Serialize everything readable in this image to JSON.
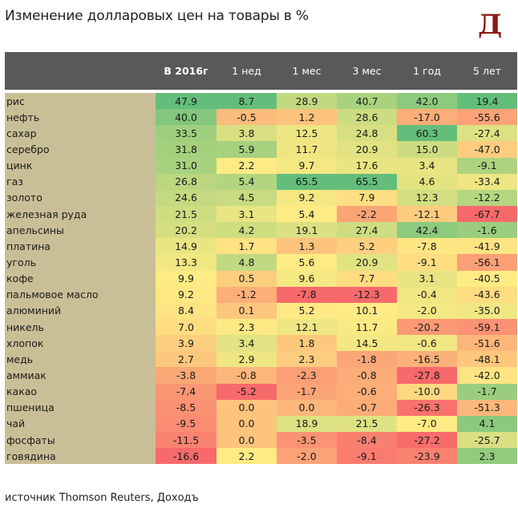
{
  "title": "Изменение долларовых цен на товары в %",
  "logo": "Д",
  "source": "источник Thomson Reuters, Доходъ",
  "colors": {
    "header_bg": "#595959",
    "name_col_bg": "#c9bf97",
    "scale_red": "#f8696b",
    "scale_yellow": "#ffeb84",
    "scale_green": "#63be7b"
  },
  "chart_data": {
    "type": "table",
    "title": "Изменение долларовых цен на товары в %",
    "columns": [
      "",
      "В 2016г",
      "1 нед",
      "1 мес",
      "3 мес",
      "1 год",
      "5 лет"
    ],
    "rows": [
      {
        "name": "рис",
        "values": [
          "47.9",
          "8.7",
          "28.9",
          "40.7",
          "42.0",
          "19.4"
        ]
      },
      {
        "name": "нефть",
        "values": [
          "40.0",
          "-0.5",
          "1.2",
          "28.6",
          "-17.0",
          "-55.6"
        ]
      },
      {
        "name": "сахар",
        "values": [
          "33.5",
          "3.8",
          "12.5",
          "24.8",
          "60.3",
          "-27.4"
        ]
      },
      {
        "name": "серебро",
        "values": [
          "31.8",
          "5.9",
          "11.7",
          "20.9",
          "15.0",
          "-47.0"
        ]
      },
      {
        "name": "цинк",
        "values": [
          "31.0",
          "2.2",
          "9.7",
          "17.6",
          "3.4",
          "-9.1"
        ]
      },
      {
        "name": "газ",
        "values": [
          "26.8",
          "5.4",
          "65.5",
          "65.5",
          "4.6",
          "-33.4"
        ]
      },
      {
        "name": "золото",
        "values": [
          "24.6",
          "4.5",
          "9.2",
          "7.9",
          "12.3",
          "-12.2"
        ]
      },
      {
        "name": "железная руда",
        "values": [
          "21.5",
          "3.1",
          "5.4",
          "-2.2",
          "-12.1",
          "-67.7"
        ]
      },
      {
        "name": "апельсины",
        "values": [
          "20.2",
          "4.2",
          "19.1",
          "27.4",
          "42.4",
          "-1.6"
        ]
      },
      {
        "name": "платина",
        "values": [
          "14.9",
          "1.7",
          "1.3",
          "5.2",
          "-7.8",
          "-41.9"
        ]
      },
      {
        "name": "уголь",
        "values": [
          "13.3",
          "4.8",
          "5.6",
          "20.9",
          "-9.1",
          "-56.1"
        ]
      },
      {
        "name": "кофе",
        "values": [
          "9.9",
          "0.5",
          "9.6",
          "7.7",
          "3.1",
          "-40.5"
        ]
      },
      {
        "name": "пальмовое масло",
        "values": [
          "9.2",
          "-1.2",
          "-7.8",
          "-12.3",
          "-0.4",
          "-43.6"
        ]
      },
      {
        "name": "алюминий",
        "values": [
          "8.4",
          "0.1",
          "5.2",
          "10.1",
          "-2.0",
          "-35.0"
        ]
      },
      {
        "name": "никель",
        "values": [
          "7.0",
          "2.3",
          "12.1",
          "11.7",
          "-20.2",
          "-59.1"
        ]
      },
      {
        "name": "хлопок",
        "values": [
          "3.9",
          "3.4",
          "1.8",
          "14.5",
          "-0.6",
          "-51.6"
        ]
      },
      {
        "name": "медь",
        "values": [
          "2.7",
          "2.9",
          "2.3",
          "-1.8",
          "-16.5",
          "-48.1"
        ]
      },
      {
        "name": "аммиак",
        "values": [
          "-3.8",
          "-0.8",
          "-2.3",
          "-0.8",
          "-27.8",
          "-42.0"
        ]
      },
      {
        "name": "какао",
        "values": [
          "-7.4",
          "-5.2",
          "-1.7",
          "-0.6",
          "-10.0",
          "-1.7"
        ]
      },
      {
        "name": "пшеница",
        "values": [
          "-8.5",
          "0.0",
          "0.0",
          "-0.7",
          "-26.3",
          "-51.3"
        ]
      },
      {
        "name": "чай",
        "values": [
          "-9.5",
          "0.0",
          "18.9",
          "21.5",
          "-7.0",
          "4.1"
        ]
      },
      {
        "name": "фосфаты",
        "values": [
          "-11.5",
          "0.0",
          "-3.5",
          "-8.4",
          "-27.2",
          "-25.7"
        ]
      },
      {
        "name": "говядина",
        "values": [
          "-16.6",
          "2.2",
          "-2.0",
          "-9.1",
          "-23.9",
          "2.3"
        ]
      }
    ]
  }
}
